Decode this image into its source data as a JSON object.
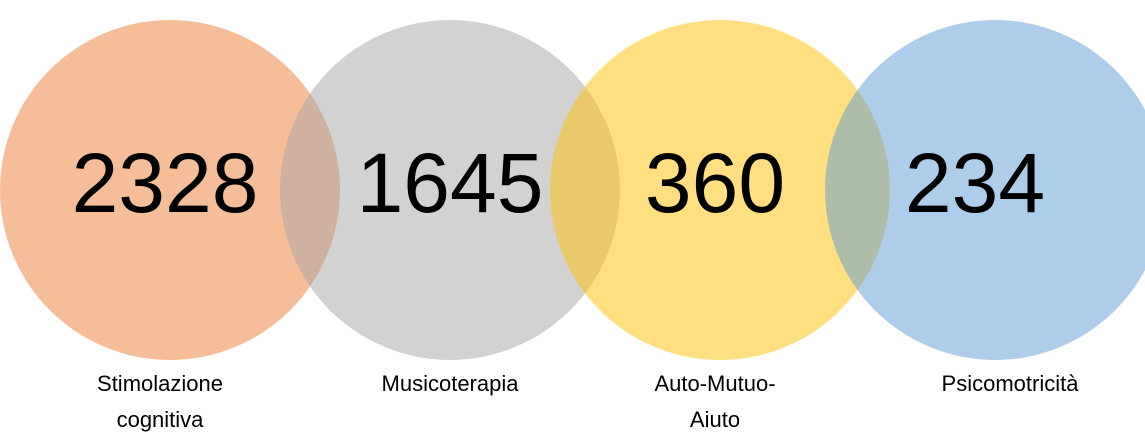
{
  "items": [
    {
      "value": 2328,
      "label": [
        "Stimolazione",
        "cognitiva"
      ],
      "color": "rgba(237,125,49,0.5)"
    },
    {
      "value": 1645,
      "label": [
        "Musicoterapia"
      ],
      "color": "rgba(165,165,165,0.5)"
    },
    {
      "value": 360,
      "label": [
        "Auto-Mutuo-",
        "Aiuto"
      ],
      "color": "rgba(255,192,0,0.5)"
    },
    {
      "value": 234,
      "label": [
        "Psicomotricità"
      ],
      "color": "rgba(91,155,213,0.5)"
    }
  ]
}
